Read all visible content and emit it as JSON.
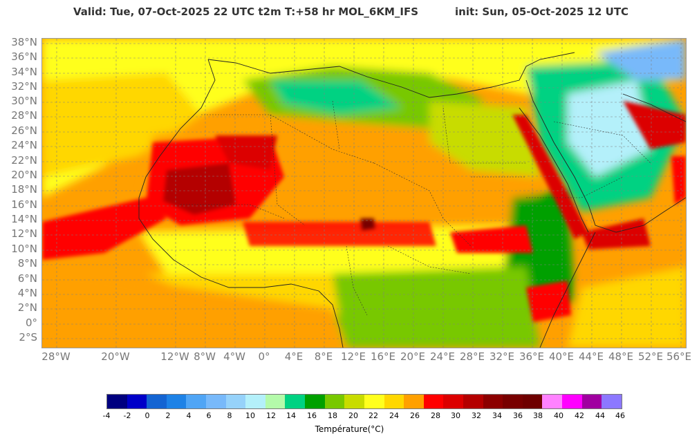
{
  "header": {
    "valid": "Valid: Tue, 07-Oct-2025   22 UTC   t2m   T:+58 hr   MOL_6KM_IFS",
    "init": "init: Sun, 05-Oct-2025   12 UTC"
  },
  "lat_labels": [
    "38°N",
    "36°N",
    "34°N",
    "32°N",
    "30°N",
    "28°N",
    "26°N",
    "24°N",
    "22°N",
    "20°N",
    "18°N",
    "16°N",
    "14°N",
    "12°N",
    "10°N",
    "8°N",
    "6°N",
    "4°N",
    "2°N",
    "0°",
    "2°S"
  ],
  "lon_labels": [
    "28°W",
    "20°W",
    "12°W",
    "8°W",
    "4°W",
    "0°",
    "4°E",
    "8°E",
    "12°E",
    "16°E",
    "20°E",
    "24°E",
    "28°E",
    "32°E",
    "36°E",
    "40°E",
    "44°E",
    "48°E",
    "52°E",
    "56°E"
  ],
  "colorbar": {
    "title": "Température(°C)",
    "ticks": [
      "-4",
      "-2",
      "0",
      "2",
      "4",
      "6",
      "8",
      "10",
      "12",
      "14",
      "16",
      "18",
      "20",
      "22",
      "24",
      "26",
      "28",
      "30",
      "32",
      "34",
      "36",
      "38",
      "40",
      "42",
      "44",
      "46"
    ],
    "colors": [
      "#00007f",
      "#0000c8",
      "#1464d2",
      "#1e82e6",
      "#50a5f5",
      "#78b9fa",
      "#96d2fa",
      "#b4f0fa",
      "#b4faaa",
      "#00d282",
      "#00a000",
      "#78c800",
      "#c8dc00",
      "#ffff1e",
      "#ffd700",
      "#ffa000",
      "#ff0000",
      "#dc0000",
      "#b40000",
      "#8c0000",
      "#780000",
      "#6e0000",
      "#ff82ff",
      "#ff00ff",
      "#a000a0",
      "#8c78ff"
    ]
  }
}
